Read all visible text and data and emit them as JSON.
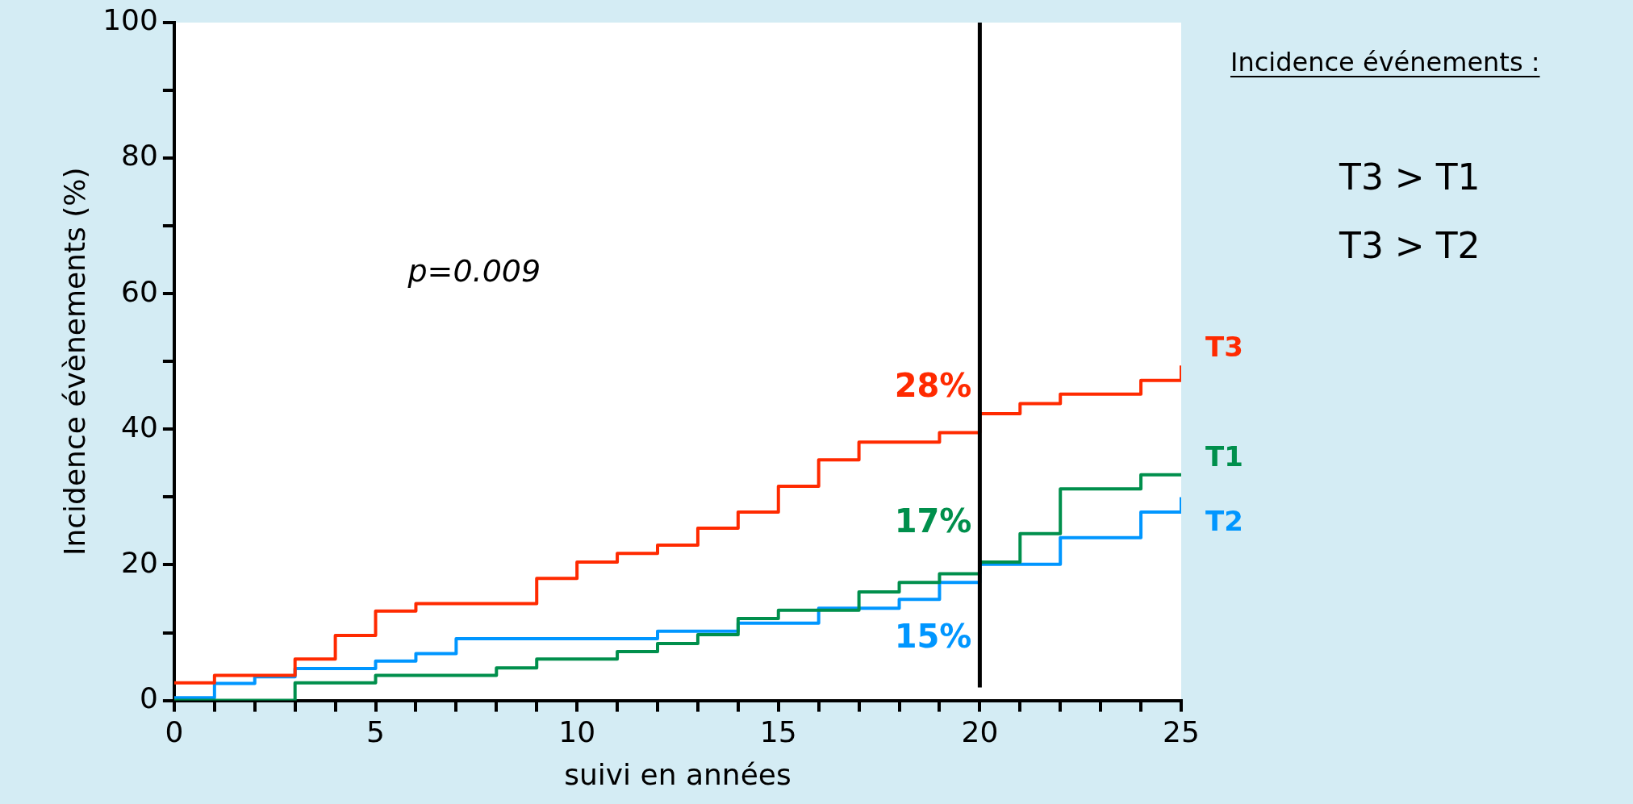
{
  "chart_data": {
    "type": "step",
    "xlabel": "suivi en années",
    "ylabel": "Incidence évènements (%)",
    "xlim": [
      0,
      25
    ],
    "ylim": [
      0,
      100
    ],
    "xticks": [
      0,
      {
        "value": 1,
        "label": null
      },
      {
        "value": 2,
        "label": null
      },
      {
        "value": 3,
        "label": null
      },
      {
        "value": 4,
        "label": null
      },
      5,
      {
        "value": 6,
        "label": null
      },
      {
        "value": 7,
        "label": null
      },
      {
        "value": 8,
        "label": null
      },
      {
        "value": 9,
        "label": null
      },
      10,
      {
        "value": 11,
        "label": null
      },
      {
        "value": 12,
        "label": null
      },
      {
        "value": 13,
        "label": null
      },
      {
        "value": 14,
        "label": null
      },
      15,
      {
        "value": 16,
        "label": null
      },
      {
        "value": 17,
        "label": null
      },
      {
        "value": 18,
        "label": null
      },
      {
        "value": 19,
        "label": null
      },
      20,
      {
        "value": 21,
        "label": null
      },
      {
        "value": 22,
        "label": null
      },
      {
        "value": 23,
        "label": null
      },
      {
        "value": 24,
        "label": null
      },
      25
    ],
    "yticks": [
      0,
      {
        "value": 10,
        "label": null
      },
      20,
      {
        "value": 30,
        "label": null
      },
      40,
      {
        "value": 50,
        "label": null
      },
      60,
      {
        "value": 70,
        "label": null
      },
      80,
      {
        "value": 90,
        "label": null
      },
      100
    ],
    "grid": false,
    "legend": false,
    "series": [
      {
        "name": "T3",
        "color": "#ff2a00",
        "x": [
          0,
          1,
          3,
          4,
          5,
          6,
          9,
          10,
          11,
          12,
          13,
          14,
          15,
          16,
          17,
          19,
          20,
          21,
          22,
          24,
          25,
          25
        ],
        "values": [
          2.6,
          3.7,
          6.1,
          9.6,
          13.2,
          14.3,
          18.0,
          20.4,
          21.7,
          22.9,
          25.4,
          27.8,
          31.6,
          35.5,
          38.1,
          39.5,
          42.3,
          43.8,
          45.2,
          47.2,
          47.2,
          49.4
        ]
      },
      {
        "name": "T1",
        "color": "#008f4c",
        "x": [
          0,
          3,
          5,
          8,
          9,
          11,
          12,
          13,
          14,
          15,
          17,
          18,
          19,
          20,
          21,
          22,
          24,
          25
        ],
        "values": [
          0,
          2.6,
          3.7,
          4.8,
          6.1,
          7.2,
          8.4,
          9.7,
          12.1,
          13.3,
          16.0,
          17.4,
          18.7,
          20.4,
          24.6,
          31.2,
          33.3,
          33.3
        ]
      },
      {
        "name": "T2",
        "color": "#0096ff",
        "x": [
          0,
          1,
          2,
          3,
          5,
          6,
          7,
          12,
          14,
          16,
          18,
          19,
          20,
          22,
          24,
          25,
          25
        ],
        "values": [
          0.4,
          2.5,
          3.5,
          4.7,
          5.8,
          6.9,
          9.1,
          10.2,
          11.4,
          13.6,
          14.9,
          17.4,
          20.1,
          24.0,
          27.8,
          27.8,
          30.0
        ]
      }
    ],
    "ref_lines": [
      {
        "axis": "x",
        "value": 20,
        "color": "#000000"
      }
    ],
    "annotations": [
      "p=0.009",
      "28%",
      "17%",
      "15%",
      "Incidence événements :",
      "T3 > T1",
      "T3 > T2"
    ]
  }
}
